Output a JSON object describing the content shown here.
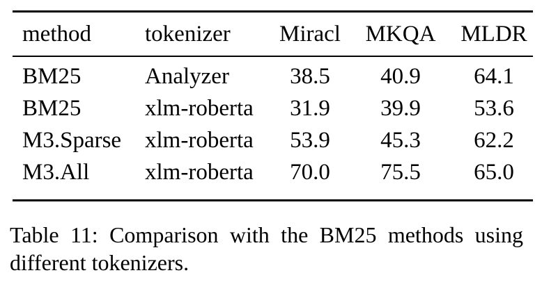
{
  "page": {
    "background_color": "#ffffff",
    "text_color": "#000000",
    "rule_color": "#000000"
  },
  "table": {
    "columns": [
      "method",
      "tokenizer",
      "Miracl",
      "MKQA",
      "MLDR"
    ],
    "rows": [
      [
        "BM25",
        "Analyzer",
        "38.5",
        "40.9",
        "64.1"
      ],
      [
        "BM25",
        "xlm-roberta",
        "31.9",
        "39.9",
        "53.6"
      ],
      [
        "M3.Sparse",
        "xlm-roberta",
        "53.9",
        "45.3",
        "62.2"
      ],
      [
        "M3.All",
        "xlm-roberta",
        "70.0",
        "75.5",
        "65.0"
      ]
    ]
  },
  "caption": {
    "line1": "Table 11: Comparison with the BM25 methods using",
    "line2": "different tokenizers.",
    "full_text": "Table 11: Comparison with the BM25 methods using different tokenizers."
  }
}
